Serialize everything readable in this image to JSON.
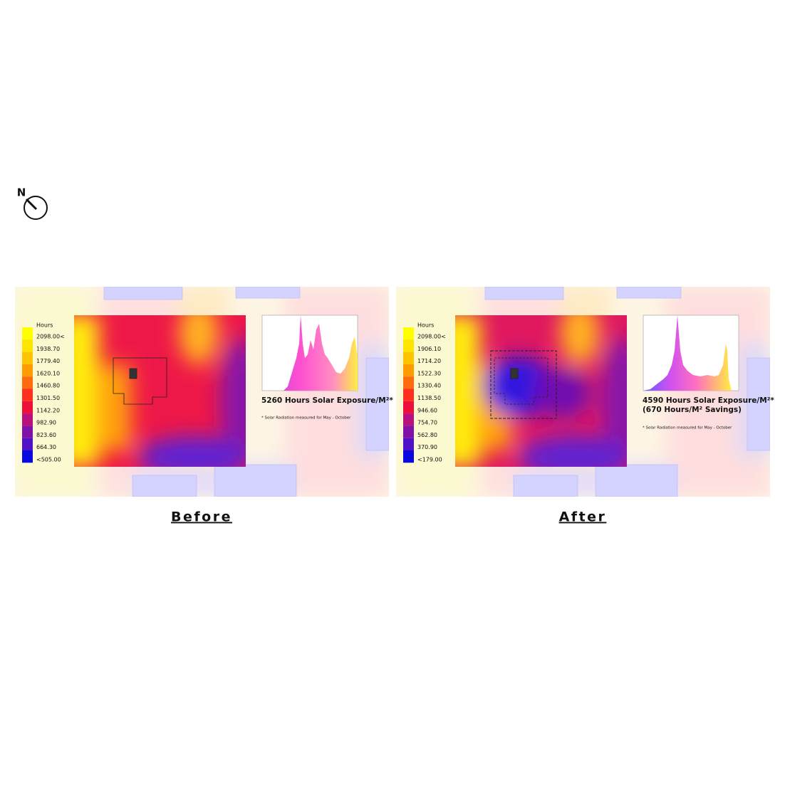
{
  "compass": {
    "label": "N"
  },
  "panels": [
    {
      "legend_title": "Hours",
      "legend_labels": [
        "2098.00<",
        "1938.70",
        "1779.40",
        "1620.10",
        "1460.80",
        "1301.50",
        "1142.20",
        "982.90",
        "823.60",
        "664.30",
        "<505.00"
      ],
      "headline": [
        "5260 Hours Solar Exposure/M²*"
      ],
      "footnote": "* Solar Radiation measured for May - October",
      "caption": "Before"
    },
    {
      "legend_title": "Hours",
      "legend_labels": [
        "2098.00<",
        "1906.10",
        "1714.20",
        "1522.30",
        "1330.40",
        "1138.50",
        "946.60",
        "754.70",
        "562.80",
        "370.90",
        "<179.00"
      ],
      "headline": [
        "4590 Hours Solar Exposure/M²*",
        "(670 Hours/M² Savings)"
      ],
      "footnote": "* Solar Radiation measured for May - October",
      "caption": "After"
    }
  ]
}
